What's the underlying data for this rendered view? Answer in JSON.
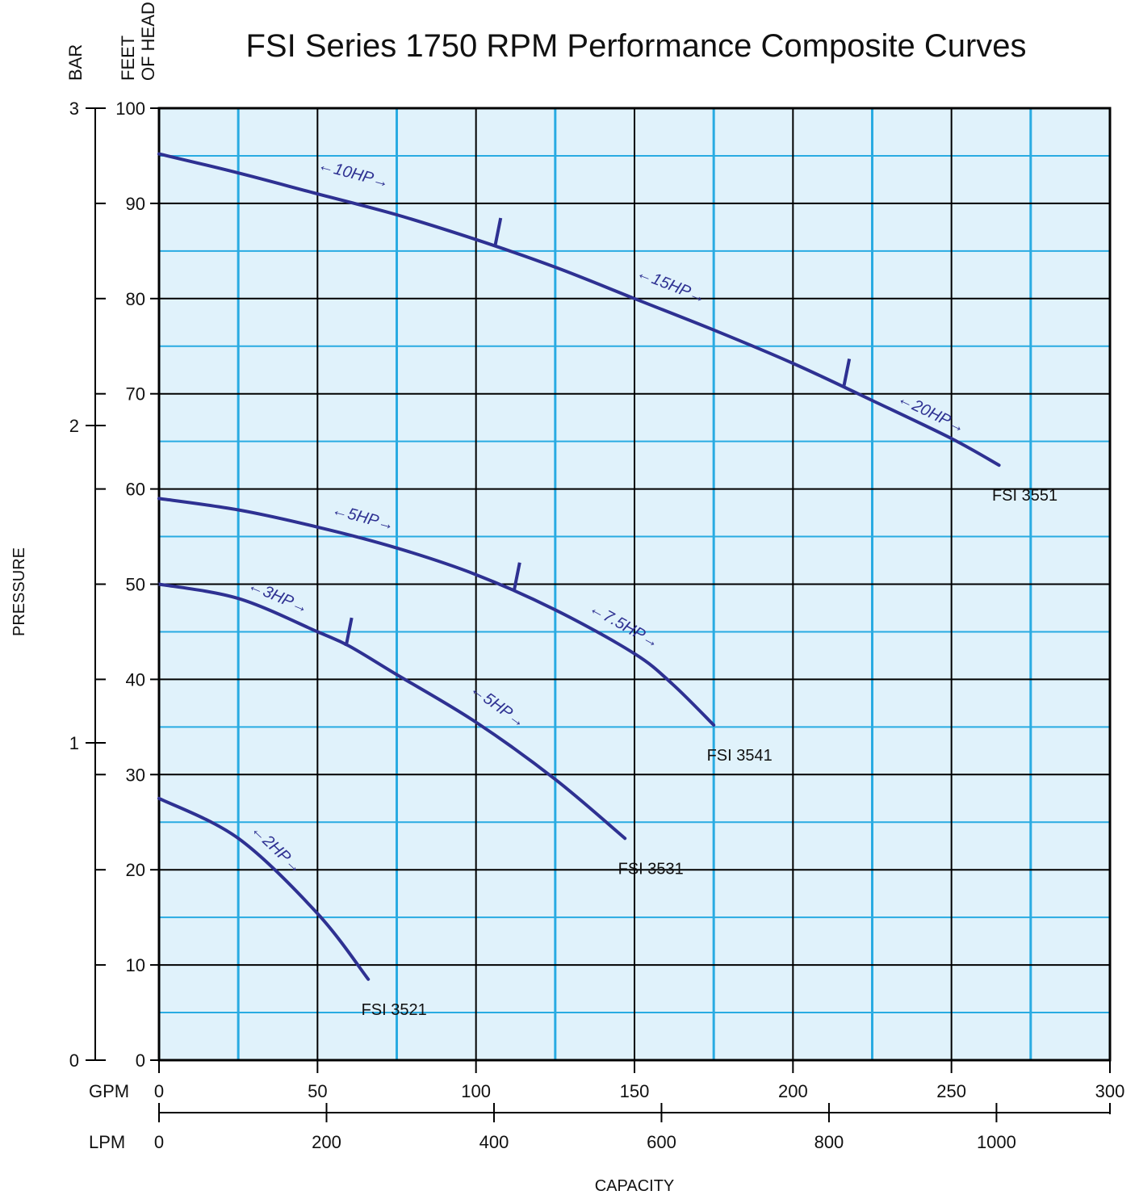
{
  "chart_data": {
    "type": "line",
    "title": "FSI Series 1750 RPM Performance Composite Curves",
    "ylabel": "PRESSURE",
    "xlabel": "CAPACITY",
    "y_axis_feet": {
      "label": "FEET OF HEAD",
      "range": [
        0,
        100
      ],
      "ticks": [
        0,
        10,
        20,
        30,
        40,
        50,
        60,
        70,
        80,
        90,
        100
      ]
    },
    "y_axis_bar": {
      "label": "BAR",
      "range": [
        0,
        3
      ],
      "ticks": [
        0,
        1,
        2,
        3
      ]
    },
    "x_axis_gpm": {
      "label": "GPM",
      "range": [
        0,
        300
      ],
      "ticks": [
        0,
        50,
        100,
        150,
        200,
        250,
        300
      ]
    },
    "x_axis_lpm": {
      "label": "LPM",
      "ticks": [
        0,
        200,
        400,
        600,
        800,
        1000
      ]
    },
    "grid": true,
    "colors": {
      "curve": "#2e3192",
      "grid_major": "#000000",
      "grid_minor": "#29abe2",
      "background": "#e0f2fb"
    },
    "series": [
      {
        "name": "FSI 3551",
        "points": [
          [
            0,
            95.2
          ],
          [
            25,
            93.2
          ],
          [
            50,
            91
          ],
          [
            75,
            88.8
          ],
          [
            100,
            86.2
          ],
          [
            125,
            83.3
          ],
          [
            150,
            80
          ],
          [
            175,
            76.7
          ],
          [
            200,
            73.2
          ],
          [
            225,
            69.3
          ],
          [
            250,
            65.3
          ],
          [
            265,
            62.5
          ]
        ],
        "hp_marks": [
          {
            "gpm": 106,
            "feet": 85.5
          },
          {
            "gpm": 216,
            "feet": 70.7
          }
        ],
        "hp_labels": [
          {
            "text": "10HP",
            "gpm": 61,
            "feet": 92.6
          },
          {
            "text": "15HP",
            "gpm": 161,
            "feet": 80.9
          },
          {
            "text": "20HP",
            "gpm": 243,
            "feet": 67.5
          }
        ]
      },
      {
        "name": "FSI 3541",
        "points": [
          [
            0,
            59
          ],
          [
            25,
            57.8
          ],
          [
            50,
            56
          ],
          [
            75,
            53.8
          ],
          [
            100,
            51
          ],
          [
            125,
            47.3
          ],
          [
            150,
            42.7
          ],
          [
            162,
            39.5
          ],
          [
            175,
            35.2
          ]
        ],
        "hp_marks": [
          {
            "gpm": 112,
            "feet": 49.3
          }
        ],
        "hp_labels": [
          {
            "text": "5HP",
            "gpm": 64,
            "feet": 56.5
          },
          {
            "text": "7.5HP",
            "gpm": 146,
            "feet": 45.2
          }
        ]
      },
      {
        "name": "FSI 3531",
        "points": [
          [
            0,
            50
          ],
          [
            25,
            48.5
          ],
          [
            50,
            45
          ],
          [
            60,
            43.5
          ],
          [
            75,
            40.5
          ],
          [
            100,
            35.5
          ],
          [
            125,
            29.5
          ],
          [
            147,
            23.3
          ]
        ],
        "hp_marks": [
          {
            "gpm": 59,
            "feet": 43.5
          }
        ],
        "hp_labels": [
          {
            "text": "3HP",
            "gpm": 37,
            "feet": 48.2
          },
          {
            "text": "5HP",
            "gpm": 106,
            "feet": 36.8
          }
        ]
      },
      {
        "name": "FSI 3521",
        "points": [
          [
            0,
            27.5
          ],
          [
            25,
            23.3
          ],
          [
            50,
            15.4
          ],
          [
            66,
            8.5
          ]
        ],
        "hp_marks": [],
        "hp_labels": [
          {
            "text": "2HP",
            "gpm": 36,
            "feet": 21.8
          }
        ]
      }
    ]
  }
}
